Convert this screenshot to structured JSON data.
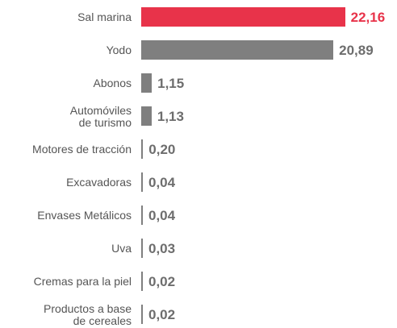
{
  "chart_data": {
    "type": "bar",
    "orientation": "horizontal",
    "categories": [
      "Sal marina",
      "Yodo",
      "Abonos",
      "Automóviles\nde turismo",
      "Motores de tracción",
      "Excavadoras",
      "Envases Metálicos",
      "Uva",
      "Cremas para la piel",
      "Productos a base\nde cereales"
    ],
    "values": [
      22.16,
      20.89,
      1.15,
      1.13,
      0.2,
      0.04,
      0.04,
      0.03,
      0.02,
      0.02
    ],
    "value_labels": [
      "22,16",
      "20,89",
      "1,15",
      "1,13",
      "0,20",
      "0,04",
      "0,04",
      "0,03",
      "0,02",
      "0,02"
    ],
    "colors": [
      "#e8334a",
      "#7f7f7f",
      "#7f7f7f",
      "#7f7f7f",
      "#7f7f7f",
      "#7f7f7f",
      "#7f7f7f",
      "#7f7f7f",
      "#7f7f7f",
      "#7f7f7f"
    ],
    "label_colors": [
      "#e8334a",
      "#6d6d6d",
      "#6d6d6d",
      "#6d6d6d",
      "#6d6d6d",
      "#6d6d6d",
      "#6d6d6d",
      "#6d6d6d",
      "#6d6d6d",
      "#6d6d6d"
    ],
    "xlim": [
      0,
      25
    ]
  }
}
